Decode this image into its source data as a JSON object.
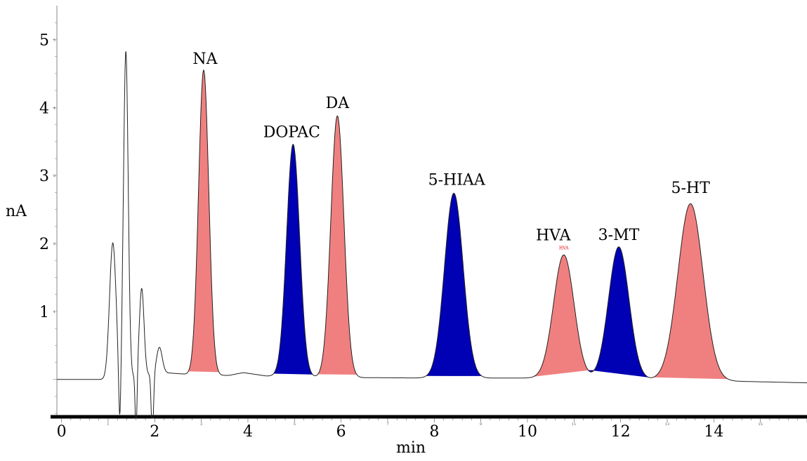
{
  "chart_data": {
    "type": "line",
    "xlabel": "min",
    "ylabel": "nA",
    "xlim": [
      -0.1,
      16.0
    ],
    "ylim": [
      -0.55,
      5.5
    ],
    "x_ticks_major": [
      "0",
      "2",
      "4",
      "6",
      "8",
      "10",
      "12",
      "14"
    ],
    "x_ticks_major_values": [
      0,
      2,
      4,
      6,
      8,
      10,
      12,
      14
    ],
    "x_ticks_minor": [
      "1",
      "3",
      "5",
      "7",
      "9",
      "11",
      "13",
      "15"
    ],
    "x_ticks_minor_values": [
      1,
      3,
      5,
      7,
      9,
      11,
      13,
      15
    ],
    "y_ticks": [
      "1",
      "2",
      "3",
      "4",
      "5"
    ],
    "y_ticks_values": [
      1,
      2,
      3,
      4,
      5
    ],
    "baseline": [
      [
        -0.1,
        0.0
      ],
      [
        1.0,
        0.0
      ],
      [
        2.2,
        0.1
      ],
      [
        2.6,
        0.08
      ],
      [
        2.9,
        0.05
      ],
      [
        3.6,
        0.06
      ],
      [
        3.9,
        0.1
      ],
      [
        4.4,
        0.05
      ],
      [
        5.5,
        0.03
      ],
      [
        8.0,
        0.02
      ],
      [
        10.0,
        0.02
      ],
      [
        12.0,
        0.0
      ],
      [
        14.0,
        -0.02
      ],
      [
        16.0,
        -0.05
      ]
    ],
    "solvent_front": [
      {
        "x": 1.1,
        "height": 2.0,
        "width": 0.07
      },
      {
        "x": 1.38,
        "height": 4.8,
        "width": 0.05
      },
      {
        "x": 1.72,
        "height": 1.28,
        "width": 0.05
      },
      {
        "x": 2.1,
        "height": 0.38,
        "width": 0.06
      }
    ],
    "peaks": [
      {
        "name": "NA",
        "label": "NA",
        "x": 3.05,
        "height": 4.5,
        "width": 0.11,
        "color": "#f08080"
      },
      {
        "name": "DOPAC",
        "label": "DOPAC",
        "x": 4.97,
        "height": 3.42,
        "width": 0.14,
        "color": "#0000b4"
      },
      {
        "name": "DA",
        "label": "DA",
        "x": 5.92,
        "height": 3.85,
        "width": 0.14,
        "color": "#f08080"
      },
      {
        "name": "5-HIAA",
        "label": "5-HIAA",
        "x": 8.42,
        "height": 2.72,
        "width": 0.2,
        "color": "#0000b4"
      },
      {
        "name": "HVA",
        "label": "HVA",
        "x": 10.78,
        "height": 1.82,
        "width": 0.22,
        "color": "#f08080",
        "tag": "HVA"
      },
      {
        "name": "3-MT",
        "label": "3-MT",
        "x": 11.96,
        "height": 1.95,
        "width": 0.22,
        "color": "#0000b4"
      },
      {
        "name": "5-HT",
        "label": "5-HT",
        "x": 13.5,
        "height": 2.6,
        "width": 0.27,
        "color": "#f08080"
      }
    ]
  }
}
